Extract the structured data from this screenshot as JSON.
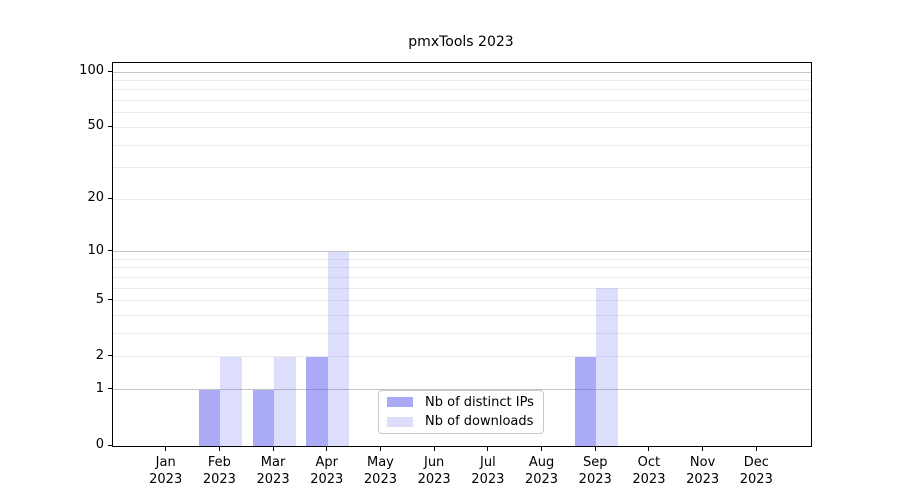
{
  "chart_data": {
    "type": "bar",
    "title": "pmxTools 2023",
    "yscale": "log1p",
    "categories": [
      "Jan 2023",
      "Feb 2023",
      "Mar 2023",
      "Apr 2023",
      "May 2023",
      "Jun 2023",
      "Jul 2023",
      "Aug 2023",
      "Sep 2023",
      "Oct 2023",
      "Nov 2023",
      "Dec 2023"
    ],
    "series": [
      {
        "name": "Nb of distinct IPs",
        "color": "#5555ee",
        "alpha": 0.5,
        "fill": "rgba(85,85,238,0.5)",
        "values": [
          0,
          1,
          1,
          2,
          0,
          0,
          0,
          0,
          2,
          0,
          0,
          0
        ]
      },
      {
        "name": "Nb of downloads",
        "color": "#5555ee",
        "alpha": 0.2,
        "fill": "rgba(85,85,238,0.2)",
        "values": [
          0,
          2,
          2,
          10,
          0,
          0,
          0,
          0,
          6,
          0,
          0,
          0
        ]
      }
    ],
    "yticks": [
      0,
      1,
      2,
      5,
      10,
      20,
      50,
      100
    ],
    "major_gridlines": [
      1,
      10,
      100
    ],
    "minor_gridlines": [
      2,
      3,
      4,
      5,
      6,
      7,
      8,
      9,
      20,
      30,
      40,
      50,
      60,
      70,
      80,
      90
    ],
    "ylim": [
      0,
      112
    ],
    "grid": true,
    "legend_position": "lower center-left inside plot",
    "colors": {
      "grid_major": "#c6c6c6",
      "grid_minor": "#ebebeb",
      "axis": "#000000",
      "background": "#ffffff"
    }
  }
}
